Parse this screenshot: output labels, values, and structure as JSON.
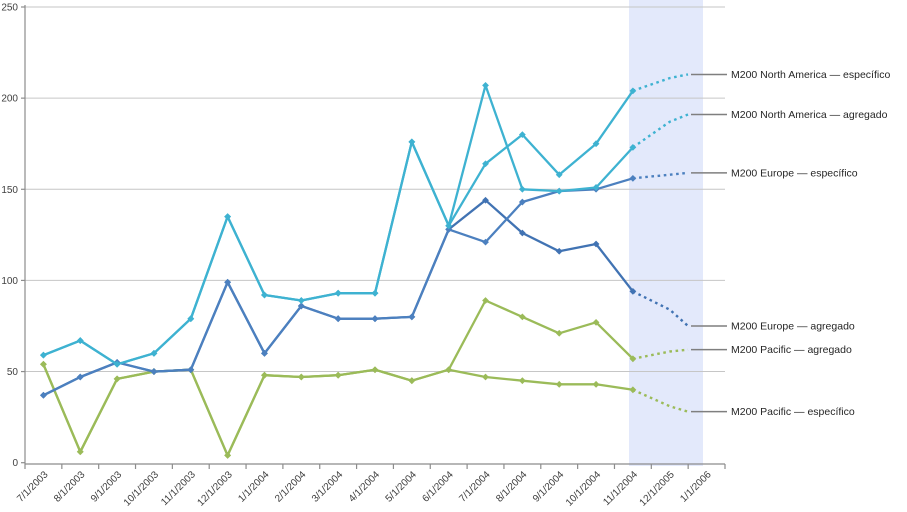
{
  "chart_data": {
    "type": "line",
    "title": "",
    "xlabel": "",
    "ylabel": "",
    "ylim": [
      0,
      250
    ],
    "yticks": [
      0,
      50,
      100,
      150,
      200,
      250
    ],
    "grid": "horizontal",
    "legend_position": "right-annotations",
    "categories": [
      "7/1/2003",
      "8/1/2003",
      "9/1/2003",
      "10/1/2003",
      "11/1/2003",
      "12/1/2003",
      "1/1/2004",
      "2/1/2004",
      "3/1/2004",
      "4/1/2004",
      "5/1/2004",
      "6/1/2004",
      "7/1/2004",
      "8/1/2004",
      "9/1/2004",
      "10/1/2004",
      "11/1/2004",
      "12/1/2005",
      "1/1/2006"
    ],
    "history_count": 17,
    "forecast_categories": [
      "12/1/2005",
      "1/1/2006"
    ],
    "forecast_band": {
      "color": "#E3E9FB",
      "covers": [
        "12/1/2005",
        "1/1/2006"
      ]
    },
    "axis_color": "#8C8C8C",
    "gridline_color": "#C6C6C6",
    "leader_color": "#7F7F7F",
    "label_color": "#262626",
    "tick_label_color": "#3F3F3F",
    "series": [
      {
        "name": "M200 Pacific — específico",
        "color": "#9BBB59",
        "actual": [
          54,
          6,
          46,
          50,
          51,
          4,
          48,
          47,
          48,
          51,
          45,
          51,
          47,
          45,
          43,
          43,
          40
        ],
        "forecast": [
          31,
          28
        ]
      },
      {
        "name": "M200 Pacific — agregado",
        "color": "#9BBB59",
        "actual": [
          54,
          6,
          46,
          50,
          51,
          4,
          48,
          47,
          48,
          51,
          45,
          51,
          89,
          80,
          71,
          77,
          57
        ],
        "forecast": [
          61,
          62
        ]
      },
      {
        "name": "M200 Europe — agregado",
        "color": "#4173B3",
        "actual": [
          37,
          47,
          55,
          50,
          51,
          99,
          60,
          86,
          79,
          79,
          80,
          128,
          144,
          126,
          116,
          120,
          94
        ],
        "forecast": [
          84,
          75
        ]
      },
      {
        "name": "M200 Europe — específico",
        "color": "#4C80BF",
        "actual": [
          37,
          47,
          55,
          50,
          51,
          99,
          60,
          86,
          79,
          79,
          80,
          128,
          121,
          143,
          149,
          150,
          156
        ],
        "forecast": [
          158,
          159
        ]
      },
      {
        "name": "M200 North America — agregado",
        "color": "#3EB2D1",
        "actual": [
          59,
          67,
          54,
          60,
          79,
          135,
          92,
          89,
          93,
          93,
          176,
          130,
          207,
          150,
          149,
          151,
          173
        ],
        "forecast": [
          187,
          191
        ]
      },
      {
        "name": "M200 North America — específico",
        "color": "#3EB2D1",
        "actual": [
          59,
          67,
          54,
          60,
          79,
          135,
          92,
          89,
          93,
          93,
          176,
          130,
          164,
          180,
          158,
          175,
          204
        ],
        "forecast": [
          211,
          213
        ]
      }
    ]
  }
}
